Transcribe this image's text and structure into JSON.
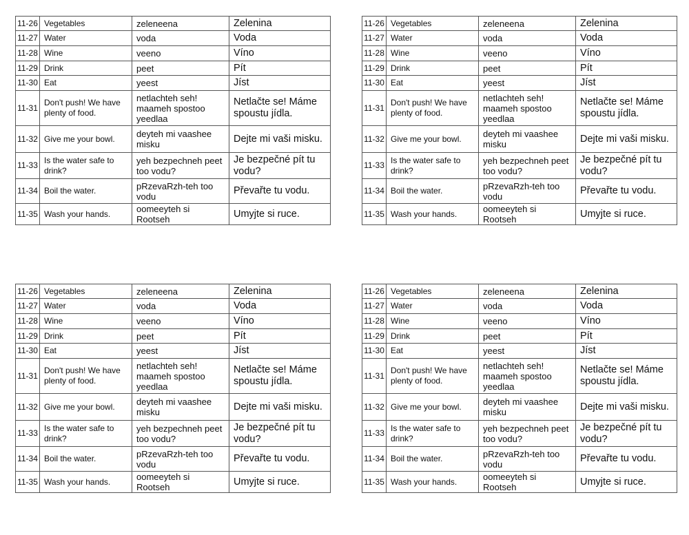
{
  "tables": [
    {
      "rows": "vocab"
    },
    {
      "rows": "vocab"
    },
    {
      "rows": "vocab"
    },
    {
      "rows": "vocab"
    }
  ],
  "vocab": [
    {
      "num": "11-26",
      "english": "Vegetables",
      "pronunciation": "zeleneena",
      "czech": "Zelenina"
    },
    {
      "num": "11-27",
      "english": "Water",
      "pronunciation": "voda",
      "czech": "Voda"
    },
    {
      "num": "11-28",
      "english": "Wine",
      "pronunciation": "veeno",
      "czech": "Víno"
    },
    {
      "num": "11-29",
      "english": "Drink",
      "pronunciation": "peet",
      "czech": "Pít"
    },
    {
      "num": "11-30",
      "english": "Eat",
      "pronunciation": "yeest",
      "czech": "Jíst"
    },
    {
      "num": "11-31",
      "english": "Don't push! We have plenty of food.",
      "pronunciation": "netlachteh seh! maameh spostoo yeedlaa",
      "czech": "Netlačte se! Máme spoustu jídla."
    },
    {
      "num": "11-32",
      "english": "Give me your bowl.",
      "pronunciation": "deyteh mi vaashee misku",
      "czech": "Dejte mi vaši misku."
    },
    {
      "num": "11-33",
      "english": "Is the water safe to drink?",
      "pronunciation": "yeh bezpechneh peet too vodu?",
      "czech": "Je bezpečné pít tu vodu?"
    },
    {
      "num": "11-34",
      "english": "Boil the water.",
      "pronunciation": "pRzevaRzh-teh too vodu",
      "czech": "Převařte tu vodu."
    },
    {
      "num": "11-35",
      "english": "Wash your hands.",
      "pronunciation": "oomeeyteh si Rootseh",
      "czech": "Umyjte si ruce."
    }
  ]
}
